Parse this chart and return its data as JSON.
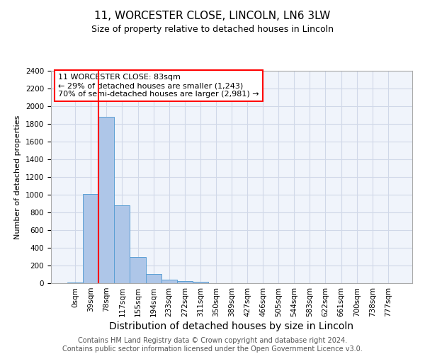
{
  "title": "11, WORCESTER CLOSE, LINCOLN, LN6 3LW",
  "subtitle": "Size of property relative to detached houses in Lincoln",
  "xlabel": "Distribution of detached houses by size in Lincoln",
  "ylabel": "Number of detached properties",
  "bar_labels": [
    "0sqm",
    "39sqm",
    "78sqm",
    "117sqm",
    "155sqm",
    "194sqm",
    "233sqm",
    "272sqm",
    "311sqm",
    "350sqm",
    "389sqm",
    "427sqm",
    "466sqm",
    "505sqm",
    "544sqm",
    "583sqm",
    "622sqm",
    "661sqm",
    "700sqm",
    "738sqm",
    "777sqm"
  ],
  "bar_values": [
    10,
    1005,
    1880,
    880,
    300,
    105,
    40,
    25,
    20,
    0,
    0,
    0,
    0,
    0,
    0,
    0,
    0,
    0,
    0,
    0,
    0
  ],
  "bar_color": "#aec6e8",
  "bar_edge_color": "#5a9fd4",
  "highlight_line_color": "red",
  "highlight_bar_index": 2,
  "annotation_text": "11 WORCESTER CLOSE: 83sqm\n← 29% of detached houses are smaller (1,243)\n70% of semi-detached houses are larger (2,981) →",
  "annotation_box_color": "white",
  "annotation_box_edge_color": "red",
  "ylim": [
    0,
    2400
  ],
  "yticks": [
    0,
    200,
    400,
    600,
    800,
    1000,
    1200,
    1400,
    1600,
    1800,
    2000,
    2200,
    2400
  ],
  "grid_color": "#d0d8e8",
  "footer_text": "Contains HM Land Registry data © Crown copyright and database right 2024.\nContains public sector information licensed under the Open Government Licence v3.0.",
  "title_fontsize": 11,
  "subtitle_fontsize": 9,
  "xlabel_fontsize": 10,
  "ylabel_fontsize": 8,
  "tick_fontsize": 7.5,
  "annotation_fontsize": 8,
  "footer_fontsize": 7
}
